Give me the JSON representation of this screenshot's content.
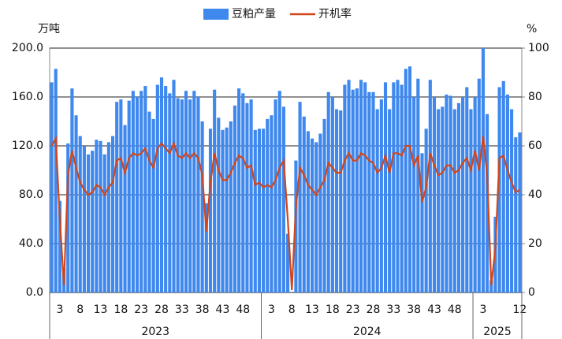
{
  "chart_data": {
    "type": "bar_line",
    "y_unit": "万吨",
    "y2_unit": "%",
    "categories": [
      null,
      null,
      "3",
      null,
      null,
      null,
      null,
      "8",
      null,
      null,
      null,
      null,
      "13",
      null,
      null,
      null,
      null,
      "18",
      null,
      null,
      null,
      null,
      "23",
      null,
      null,
      null,
      null,
      "28",
      null,
      null,
      null,
      null,
      "33",
      null,
      null,
      null,
      null,
      "38",
      null,
      null,
      null,
      null,
      "43",
      null,
      null,
      null,
      null,
      "48",
      null,
      null,
      null,
      null,
      null,
      null,
      "3",
      null,
      null,
      null,
      null,
      "8",
      null,
      null,
      null,
      null,
      "13",
      null,
      null,
      null,
      null,
      "18",
      null,
      null,
      null,
      null,
      "23",
      null,
      null,
      null,
      null,
      "28",
      null,
      null,
      null,
      null,
      "33",
      null,
      null,
      null,
      null,
      "38",
      null,
      null,
      null,
      null,
      "43",
      null,
      null,
      null,
      null,
      "48",
      null,
      null,
      null,
      null,
      null,
      null,
      "3",
      null,
      null,
      null,
      null,
      null,
      null,
      null,
      null,
      "12"
    ],
    "groups": [
      {
        "label": "2023",
        "count": 52
      },
      {
        "label": "2024",
        "count": 52
      },
      {
        "label": "2025",
        "count": 12
      }
    ],
    "series": [
      {
        "name": "豆粕产量",
        "type": "bar",
        "color": "#3f88ee",
        "values": [
          172,
          183,
          75,
          20,
          122,
          167,
          145,
          128,
          120,
          113,
          116,
          125,
          124,
          113,
          123,
          128,
          156,
          158,
          137,
          157,
          165,
          160,
          165,
          169,
          148,
          142,
          170,
          176,
          169,
          163,
          174,
          159,
          158,
          165,
          158,
          165,
          160,
          140,
          73,
          134,
          166,
          143,
          133,
          135,
          140,
          153,
          167,
          163,
          155,
          158,
          133,
          134,
          134,
          142,
          145,
          158,
          165,
          152,
          48,
          null,
          108,
          156,
          144,
          132,
          126,
          123,
          130,
          142,
          164,
          160,
          150,
          149,
          170,
          174,
          166,
          167,
          174,
          172,
          164,
          164,
          150,
          158,
          172,
          150,
          172,
          174,
          170,
          183,
          185,
          160,
          175,
          114,
          134,
          174,
          160,
          150,
          152,
          162,
          161,
          150,
          155,
          160,
          168,
          150,
          160,
          175,
          200,
          146,
          10,
          62,
          168,
          173,
          162,
          150,
          127,
          131
        ]
      },
      {
        "name": "开机率",
        "type": "line",
        "axis": "y2",
        "color": "#d0461c",
        "values": [
          60,
          63,
          30,
          3,
          48,
          58,
          51,
          45,
          42,
          40,
          41,
          44,
          43,
          40,
          43,
          45,
          54,
          55,
          49,
          55,
          57,
          56,
          57,
          59,
          54,
          51,
          59,
          61,
          59,
          57,
          61,
          56,
          55,
          57,
          55,
          57,
          55,
          48,
          25,
          45,
          57,
          50,
          46,
          46,
          49,
          53,
          56,
          55,
          51,
          52,
          44,
          45,
          43,
          44,
          43,
          46,
          51,
          54,
          30,
          1,
          35,
          51,
          48,
          44,
          42,
          40,
          43,
          46,
          53,
          51,
          49,
          49,
          54,
          57,
          54,
          54,
          57,
          56,
          54,
          53,
          49,
          51,
          56,
          49,
          57,
          57,
          56,
          60,
          60,
          52,
          56,
          37,
          43,
          57,
          52,
          48,
          49,
          52,
          52,
          49,
          50,
          53,
          55,
          50,
          58,
          50,
          64,
          48,
          3,
          18,
          55,
          56,
          50,
          45,
          41,
          42
        ]
      }
    ],
    "ylim": [
      0,
      200
    ],
    "yticks": [
      {
        "value": 0,
        "label": "0.0"
      },
      {
        "value": 40,
        "label": "40.0"
      },
      {
        "value": 80,
        "label": "80.0"
      },
      {
        "value": 120,
        "label": "120.0"
      },
      {
        "value": 160,
        "label": "160.0"
      },
      {
        "value": 200,
        "label": "200.0"
      }
    ],
    "y2lim": [
      0,
      100
    ],
    "y2ticks": [
      0,
      20,
      40,
      60,
      80,
      100
    ],
    "grid": true
  }
}
